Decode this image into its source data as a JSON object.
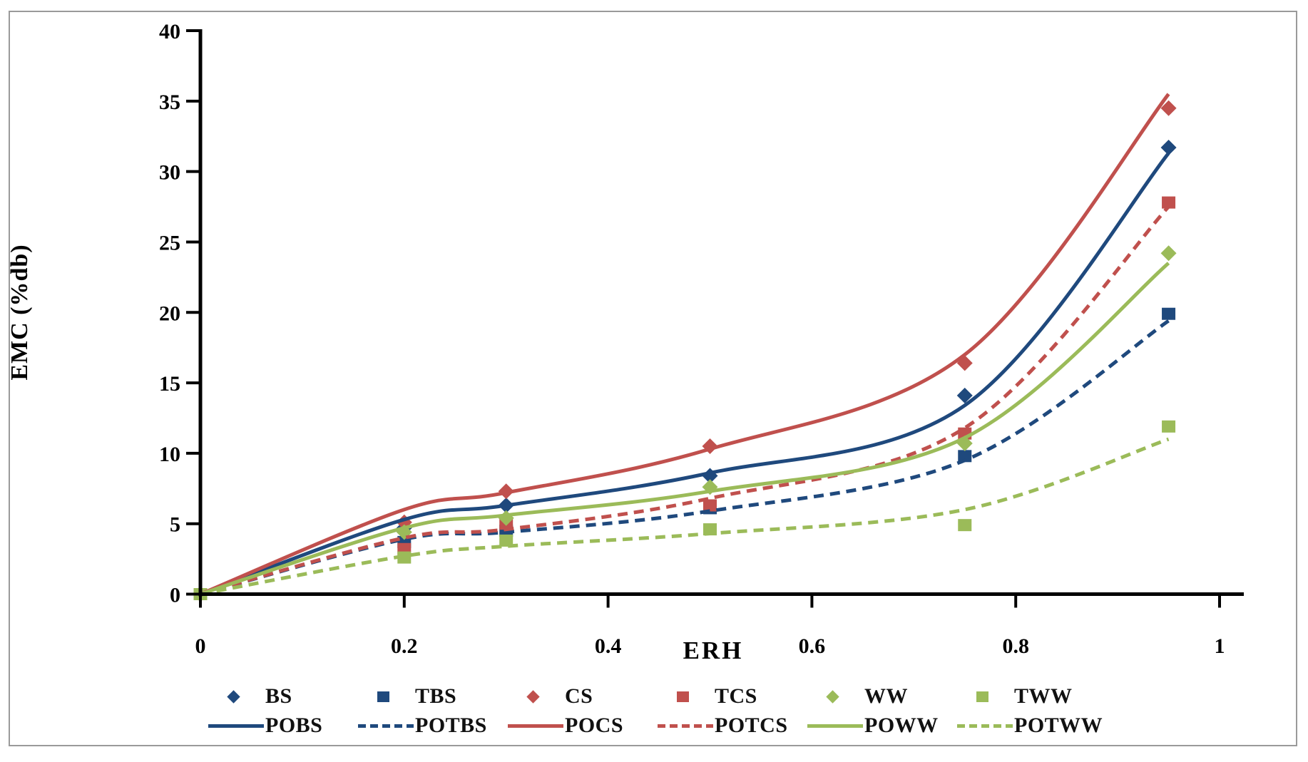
{
  "chart_data": {
    "type": "scatter",
    "title": "",
    "xlabel": "ERH",
    "ylabel": "EMC (%db)",
    "xlim": [
      0,
      1
    ],
    "ylim": [
      0,
      40
    ],
    "xticks": [
      0,
      0.2,
      0.4,
      0.6,
      0.8,
      1
    ],
    "xtick_labels": [
      "0",
      "0.2",
      "0.4",
      "0.6",
      "0.8",
      "1"
    ],
    "yticks": [
      0,
      5,
      10,
      15,
      20,
      25,
      30,
      35,
      40
    ],
    "ytick_labels": [
      "0",
      "5",
      "10",
      "15",
      "20",
      "25",
      "30",
      "35",
      "40"
    ],
    "grid": false,
    "legend_position": "bottom",
    "x": [
      0,
      0.2,
      0.3,
      0.5,
      0.75,
      0.95
    ],
    "scatter_series": [
      {
        "name": "BS",
        "color": "#1F497D",
        "marker": "diamond",
        "values": [
          0,
          4.7,
          6.3,
          8.4,
          14.1,
          31.7
        ]
      },
      {
        "name": "TBS",
        "color": "#1F497D",
        "marker": "square",
        "values": [
          0,
          3.7,
          4.5,
          6.1,
          9.8,
          19.9
        ]
      },
      {
        "name": "CS",
        "color": "#C0504D",
        "marker": "diamond",
        "values": [
          0,
          5.1,
          7.3,
          10.5,
          16.4,
          34.5
        ]
      },
      {
        "name": "TCS",
        "color": "#C0504D",
        "marker": "square",
        "values": [
          0,
          3.2,
          5.0,
          6.3,
          11.4,
          27.8
        ]
      },
      {
        "name": "WW",
        "color": "#9BBB59",
        "marker": "diamond",
        "values": [
          0,
          4.4,
          5.4,
          7.6,
          10.7,
          24.2
        ]
      },
      {
        "name": "TWW",
        "color": "#9BBB59",
        "marker": "square",
        "values": [
          0,
          2.6,
          3.8,
          4.6,
          4.9,
          11.9
        ]
      }
    ],
    "line_series": [
      {
        "name": "POBS",
        "color": "#1F497D",
        "dash": "solid",
        "values": [
          0,
          5.3,
          6.3,
          8.6,
          13.4,
          31.3
        ]
      },
      {
        "name": "POTBS",
        "color": "#1F497D",
        "dash": "dashed",
        "values": [
          0,
          3.9,
          4.4,
          5.9,
          9.5,
          19.4
        ]
      },
      {
        "name": "POCS",
        "color": "#C0504D",
        "dash": "solid",
        "values": [
          0,
          6.0,
          7.2,
          10.3,
          17.0,
          35.5
        ]
      },
      {
        "name": "POTCS",
        "color": "#C0504D",
        "dash": "dashed",
        "values": [
          0,
          4.0,
          4.6,
          6.8,
          11.8,
          27.5
        ]
      },
      {
        "name": "POWW",
        "color": "#9BBB59",
        "dash": "solid",
        "values": [
          0,
          4.7,
          5.6,
          7.3,
          11.1,
          23.5
        ]
      },
      {
        "name": "POTWW",
        "color": "#9BBB59",
        "dash": "dashed",
        "values": [
          0,
          2.7,
          3.4,
          4.3,
          6.0,
          11.0
        ]
      }
    ]
  },
  "colors": {
    "axis": "#000000",
    "border": "#9a9a9a",
    "blue": "#1F497D",
    "red": "#C0504D",
    "green": "#9BBB59"
  }
}
